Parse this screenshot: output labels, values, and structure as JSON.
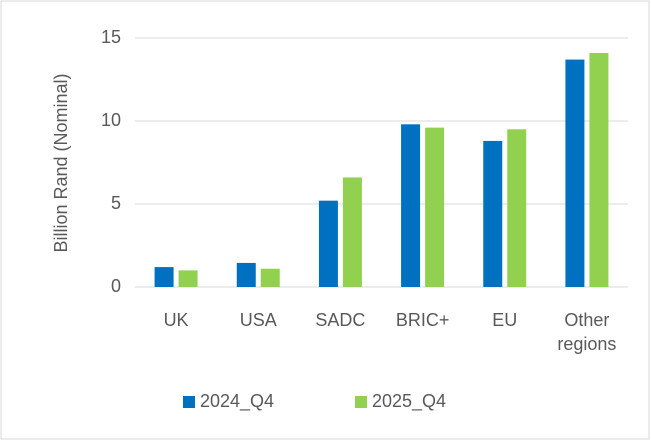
{
  "chart_data": {
    "type": "bar",
    "y_label": "Billion Rand (Nominal)",
    "categories": [
      "UK",
      "USA",
      "SADC",
      "BRIC+",
      "EU",
      "Other regions"
    ],
    "series": [
      {
        "name": "2024_Q4",
        "color": "#0070c0",
        "values": [
          1.2,
          1.45,
          5.2,
          9.8,
          8.8,
          13.7
        ]
      },
      {
        "name": "2025_Q4",
        "color": "#92d050",
        "values": [
          1.0,
          1.1,
          6.6,
          9.6,
          9.5,
          14.1
        ]
      }
    ],
    "ylim": [
      0,
      15
    ],
    "yticks": [
      0,
      5,
      10,
      15
    ],
    "grid": true,
    "legend": "bottom"
  }
}
